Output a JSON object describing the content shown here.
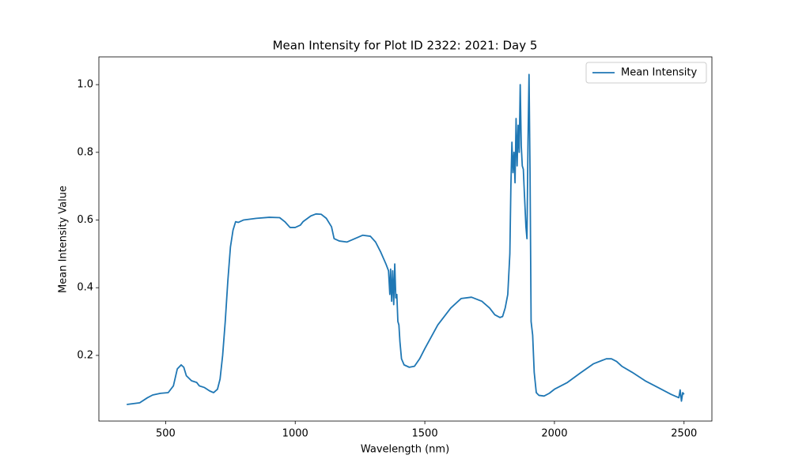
{
  "chart_data": {
    "type": "line",
    "title": "Mean Intensity for Plot ID 2322: 2021: Day 5",
    "x_label": "Wavelength (nm)",
    "y_label": "Mean Intensity Value",
    "legend": "upper right",
    "x": [
      350,
      400,
      430,
      450,
      480,
      510,
      530,
      545,
      560,
      570,
      580,
      600,
      620,
      630,
      650,
      670,
      685,
      700,
      710,
      720,
      730,
      740,
      750,
      760,
      770,
      780,
      800,
      850,
      900,
      940,
      960,
      980,
      1000,
      1020,
      1030,
      1060,
      1080,
      1100,
      1120,
      1140,
      1150,
      1170,
      1200,
      1230,
      1260,
      1290,
      1310,
      1330,
      1350,
      1360,
      1365,
      1368,
      1372,
      1376,
      1380,
      1384,
      1388,
      1392,
      1396,
      1400,
      1404,
      1410,
      1420,
      1440,
      1460,
      1480,
      1500,
      1550,
      1600,
      1640,
      1680,
      1720,
      1750,
      1770,
      1790,
      1800,
      1810,
      1820,
      1828,
      1832,
      1836,
      1840,
      1844,
      1848,
      1852,
      1856,
      1860,
      1864,
      1868,
      1872,
      1876,
      1880,
      1884,
      1890,
      1894,
      1898,
      1902,
      1906,
      1910,
      1916,
      1922,
      1930,
      1940,
      1960,
      1980,
      2000,
      2050,
      2100,
      2150,
      2200,
      2220,
      2240,
      2260,
      2300,
      2350,
      2400,
      2450,
      2480,
      2485,
      2490,
      2495,
      2500
    ],
    "series": [
      {
        "name": "Mean Intensity",
        "color": "#1f77b4",
        "values": [
          0.055,
          0.06,
          0.075,
          0.083,
          0.088,
          0.09,
          0.11,
          0.16,
          0.172,
          0.165,
          0.14,
          0.125,
          0.12,
          0.11,
          0.105,
          0.095,
          0.09,
          0.1,
          0.13,
          0.2,
          0.3,
          0.42,
          0.52,
          0.57,
          0.595,
          0.593,
          0.6,
          0.605,
          0.608,
          0.607,
          0.595,
          0.578,
          0.578,
          0.585,
          0.595,
          0.612,
          0.618,
          0.617,
          0.605,
          0.58,
          0.545,
          0.538,
          0.535,
          0.545,
          0.555,
          0.552,
          0.535,
          0.505,
          0.47,
          0.45,
          0.38,
          0.455,
          0.36,
          0.45,
          0.35,
          0.47,
          0.37,
          0.38,
          0.3,
          0.29,
          0.24,
          0.19,
          0.172,
          0.165,
          0.168,
          0.19,
          0.22,
          0.29,
          0.34,
          0.368,
          0.372,
          0.36,
          0.34,
          0.32,
          0.312,
          0.315,
          0.34,
          0.38,
          0.5,
          0.7,
          0.83,
          0.74,
          0.8,
          0.71,
          0.9,
          0.76,
          0.88,
          0.8,
          1.0,
          0.82,
          0.76,
          0.75,
          0.68,
          0.58,
          0.545,
          0.83,
          1.03,
          0.73,
          0.3,
          0.26,
          0.15,
          0.09,
          0.082,
          0.08,
          0.088,
          0.1,
          0.12,
          0.148,
          0.175,
          0.19,
          0.19,
          0.182,
          0.168,
          0.15,
          0.125,
          0.105,
          0.085,
          0.075,
          0.098,
          0.065,
          0.09,
          0.085
        ]
      }
    ],
    "xlim": [
      242.5,
      2607.5
    ],
    "xticks": [
      500,
      1000,
      1500,
      2000,
      2500
    ],
    "ylim": [
      0.006,
      1.082
    ],
    "yticks": [
      0.2,
      0.4,
      0.6,
      0.8,
      {
        "value": 1,
        "label": "1.0"
      }
    ]
  }
}
